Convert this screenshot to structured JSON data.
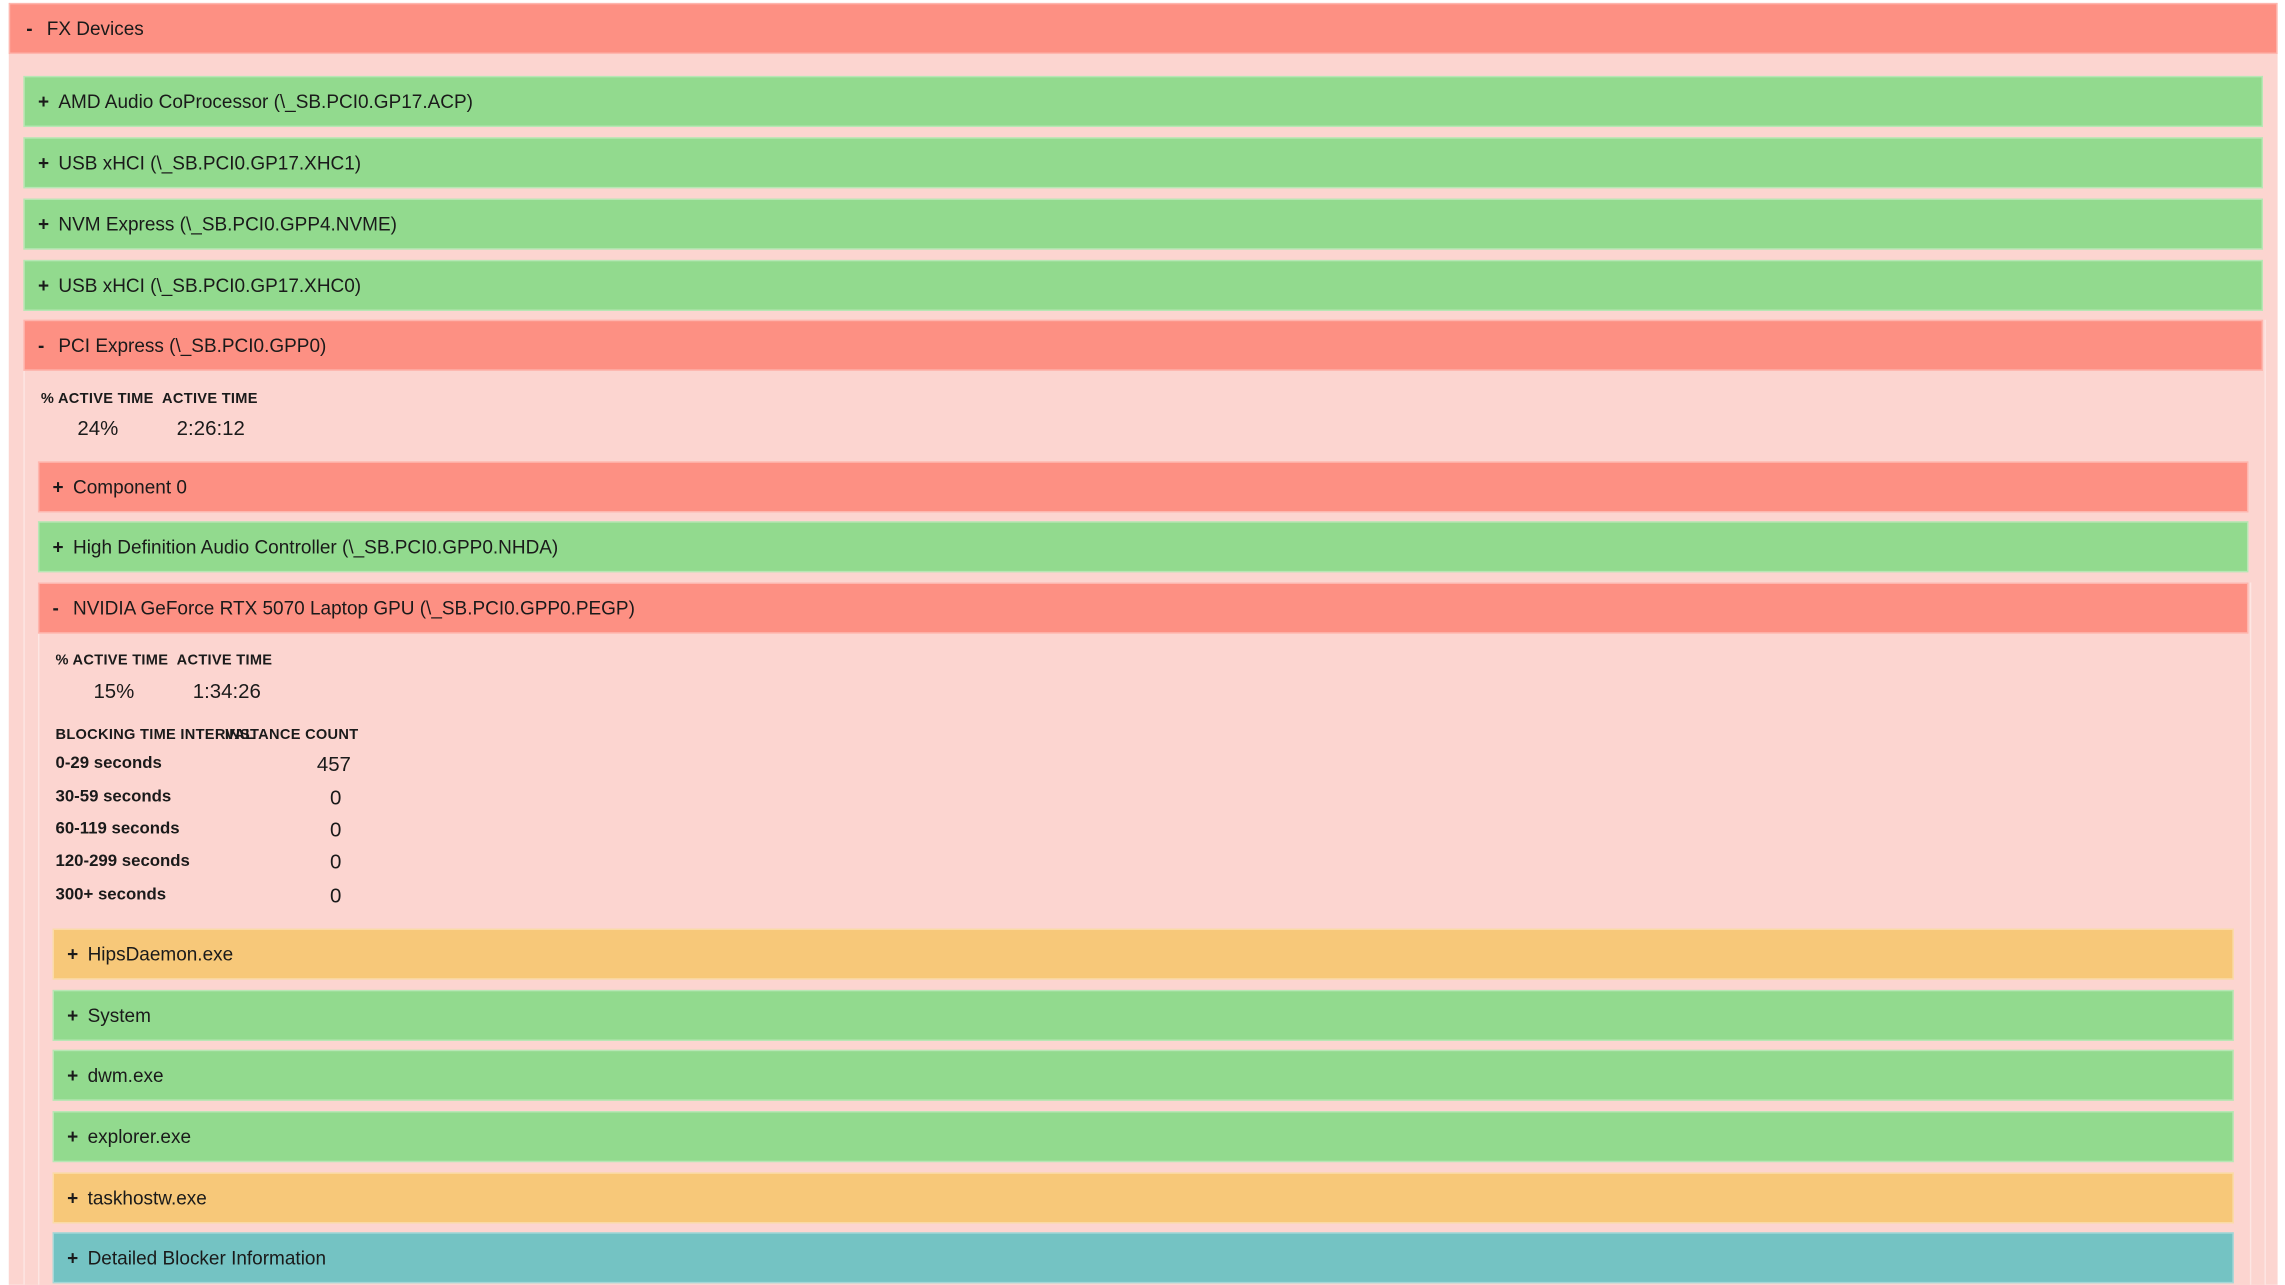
{
  "fx_devices": {
    "title": "FX Devices",
    "toggle": "-"
  },
  "devices": [
    {
      "toggle": "+",
      "label": "AMD Audio CoProcessor (\\_SB.PCI0.GP17.ACP)"
    },
    {
      "toggle": "+",
      "label": "USB xHCI (\\_SB.PCI0.GP17.XHC1)"
    },
    {
      "toggle": "+",
      "label": "NVM Express (\\_SB.PCI0.GPP4.NVME)"
    },
    {
      "toggle": "+",
      "label": "USB xHCI (\\_SB.PCI0.GP17.XHC0)"
    }
  ],
  "pci_express": {
    "toggle": "-",
    "label": "PCI Express (\\_SB.PCI0.GPP0)",
    "header_percent": "% ACTIVE TIME",
    "header_active": "ACTIVE TIME",
    "percent_value": "24%",
    "active_value": "2:26:12"
  },
  "children": [
    {
      "toggle": "+",
      "label": "Component 0"
    },
    {
      "toggle": "+",
      "label": "High Definition Audio Controller (\\_SB.PCI0.GPP0.NHDA)"
    }
  ],
  "gpu": {
    "toggle": "-",
    "label": "NVIDIA GeForce RTX 5070 Laptop GPU (\\_SB.PCI0.GPP0.PEGP)",
    "header_percent": "% ACTIVE TIME",
    "header_active": "ACTIVE TIME",
    "percent_value": "15%",
    "active_value": "1:34:26",
    "blocking_header_interval": "BLOCKING TIME INTERVAL",
    "blocking_header_count": "INSTANCE COUNT",
    "blocking_rows": [
      {
        "interval": "0-29 seconds",
        "count": "457"
      },
      {
        "interval": "30-59 seconds",
        "count": "0"
      },
      {
        "interval": "60-119 seconds",
        "count": "0"
      },
      {
        "interval": "120-299 seconds",
        "count": "0"
      },
      {
        "interval": "300+ seconds",
        "count": "0"
      }
    ]
  },
  "processes": [
    {
      "toggle": "+",
      "label": "HipsDaemon.exe",
      "status_color": "#f7c879"
    },
    {
      "toggle": "+",
      "label": "System",
      "status_color": "#92da8e"
    },
    {
      "toggle": "+",
      "label": "dwm.exe",
      "status_color": "#92da8e"
    },
    {
      "toggle": "+",
      "label": "explorer.exe",
      "status_color": "#92da8e"
    },
    {
      "toggle": "+",
      "label": "taskhostw.exe",
      "status_color": "#f7c879"
    },
    {
      "toggle": "+",
      "label": "Detailed Blocker Information",
      "status_color": "#74c3c3"
    }
  ],
  "colors": {
    "high": "#fd9083",
    "low": "#92da8e",
    "medium": "#f7c879",
    "info": "#74c3c3",
    "panel": "#fcd5d0"
  }
}
